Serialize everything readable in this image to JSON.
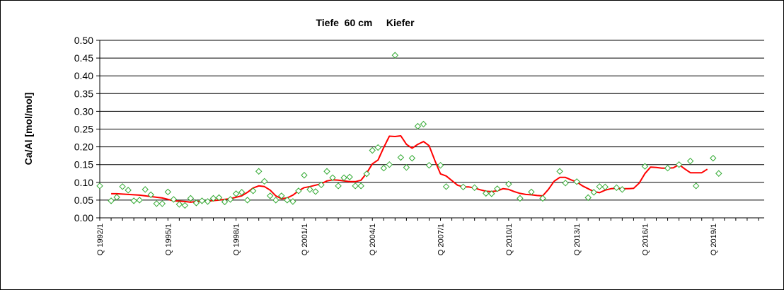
{
  "chart_data": {
    "type": "line",
    "title": "Tiefe  60 cm     Kiefer",
    "xlabel": "",
    "ylabel": "Ca/Al [mol/mol]",
    "ylim": [
      0,
      0.5
    ],
    "yticks": [
      "0.00",
      "0.05",
      "0.10",
      "0.15",
      "0.20",
      "0.25",
      "0.30",
      "0.35",
      "0.40",
      "0.45",
      "0.50"
    ],
    "xlim": [
      "Q 1992/1",
      "Q 2021/2"
    ],
    "xtick_labels": [
      "Q 1992/1",
      "Q 1995/1",
      "Q 1998/1",
      "Q 2001/1",
      "Q 2004/1",
      "Q 2007/1",
      "Q 2010/1",
      "Q 2013/1",
      "Q 2016/1",
      "Q 2019/1"
    ],
    "grid": "horizontal",
    "legend": "none",
    "colors": {
      "scatter": "#33aa33",
      "line": "#ff0000",
      "grid": "#000000",
      "plot_bg": "#ffffff"
    },
    "series": [
      {
        "type": "scatter",
        "marker": "diamond",
        "points": [
          [
            "Q 1992/1",
            0.09
          ],
          [
            "Q 1992/3",
            0.048
          ],
          [
            "Q 1992/4",
            0.058
          ],
          [
            "Q 1993/1",
            0.088
          ],
          [
            "Q 1993/2",
            0.078
          ],
          [
            "Q 1993/3",
            0.048
          ],
          [
            "Q 1993/4",
            0.05
          ],
          [
            "Q 1994/1",
            0.08
          ],
          [
            "Q 1994/2",
            0.065
          ],
          [
            "Q 1994/3",
            0.04
          ],
          [
            "Q 1994/4",
            0.04
          ],
          [
            "Q 1995/1",
            0.073
          ],
          [
            "Q 1995/2",
            0.052
          ],
          [
            "Q 1995/3",
            0.038
          ],
          [
            "Q 1995/4",
            0.035
          ],
          [
            "Q 1996/1",
            0.055
          ],
          [
            "Q 1996/2",
            0.042
          ],
          [
            "Q 1996/3",
            0.048
          ],
          [
            "Q 1996/4",
            0.046
          ],
          [
            "Q 1997/1",
            0.055
          ],
          [
            "Q 1997/2",
            0.057
          ],
          [
            "Q 1997/3",
            0.045
          ],
          [
            "Q 1997/4",
            0.052
          ],
          [
            "Q 1998/1",
            0.068
          ],
          [
            "Q 1998/2",
            0.072
          ],
          [
            "Q 1998/3",
            0.05
          ],
          [
            "Q 1998/4",
            0.076
          ],
          [
            "Q 1999/1",
            0.131
          ],
          [
            "Q 1999/2",
            0.103
          ],
          [
            "Q 1999/3",
            0.062
          ],
          [
            "Q 1999/4",
            0.05
          ],
          [
            "Q 2000/1",
            0.062
          ],
          [
            "Q 2000/2",
            0.05
          ],
          [
            "Q 2000/3",
            0.046
          ],
          [
            "Q 2000/4",
            0.076
          ],
          [
            "Q 2001/1",
            0.12
          ],
          [
            "Q 2001/2",
            0.08
          ],
          [
            "Q 2001/3",
            0.074
          ],
          [
            "Q 2001/4",
            0.093
          ],
          [
            "Q 2002/1",
            0.131
          ],
          [
            "Q 2002/2",
            0.113
          ],
          [
            "Q 2002/3",
            0.09
          ],
          [
            "Q 2002/4",
            0.113
          ],
          [
            "Q 2003/1",
            0.115
          ],
          [
            "Q 2003/2",
            0.09
          ],
          [
            "Q 2003/3",
            0.09
          ],
          [
            "Q 2003/4",
            0.124
          ],
          [
            "Q 2004/1",
            0.19
          ],
          [
            "Q 2004/2",
            0.198
          ],
          [
            "Q 2004/3",
            0.14
          ],
          [
            "Q 2004/4",
            0.15
          ],
          [
            "Q 2005/1",
            0.458
          ],
          [
            "Q 2005/2",
            0.17
          ],
          [
            "Q 2005/3",
            0.142
          ],
          [
            "Q 2005/4",
            0.168
          ],
          [
            "Q 2006/1",
            0.258
          ],
          [
            "Q 2006/2",
            0.264
          ],
          [
            "Q 2006/3",
            0.148
          ],
          [
            "Q 2007/1",
            0.148
          ],
          [
            "Q 2007/2",
            0.088
          ],
          [
            "Q 2008/1",
            0.087
          ],
          [
            "Q 2008/3",
            0.085
          ],
          [
            "Q 2009/1",
            0.069
          ],
          [
            "Q 2009/2",
            0.068
          ],
          [
            "Q 2009/3",
            0.082
          ],
          [
            "Q 2010/1",
            0.095
          ],
          [
            "Q 2010/3",
            0.055
          ],
          [
            "Q 2011/1",
            0.073
          ],
          [
            "Q 2011/3",
            0.055
          ],
          [
            "Q 2012/2",
            0.131
          ],
          [
            "Q 2012/3",
            0.098
          ],
          [
            "Q 2013/1",
            0.102
          ],
          [
            "Q 2013/3",
            0.057
          ],
          [
            "Q 2013/4",
            0.072
          ],
          [
            "Q 2014/1",
            0.088
          ],
          [
            "Q 2014/2",
            0.087
          ],
          [
            "Q 2014/4",
            0.085
          ],
          [
            "Q 2015/1",
            0.08
          ],
          [
            "Q 2016/1",
            0.145
          ],
          [
            "Q 2017/1",
            0.14
          ],
          [
            "Q 2017/3",
            0.15
          ],
          [
            "Q 2018/1",
            0.16
          ],
          [
            "Q 2018/2",
            0.09
          ],
          [
            "Q 2019/1",
            0.168
          ],
          [
            "Q 2019/2",
            0.125
          ]
        ]
      },
      {
        "type": "line",
        "points": [
          [
            "Q 1992/3",
            0.068
          ],
          [
            "Q 1992/4",
            0.068
          ],
          [
            "Q 1993/2",
            0.066
          ],
          [
            "Q 1993/4",
            0.064
          ],
          [
            "Q 1994/2",
            0.06
          ],
          [
            "Q 1994/4",
            0.056
          ],
          [
            "Q 1995/2",
            0.048
          ],
          [
            "Q 1995/4",
            0.046
          ],
          [
            "Q 1996/1",
            0.044
          ],
          [
            "Q 1996/2",
            0.046
          ],
          [
            "Q 1996/4",
            0.047
          ],
          [
            "Q 1997/2",
            0.05
          ],
          [
            "Q 1997/4",
            0.054
          ],
          [
            "Q 1998/1",
            0.058
          ],
          [
            "Q 1998/2",
            0.062
          ],
          [
            "Q 1998/3",
            0.072
          ],
          [
            "Q 1998/4",
            0.084
          ],
          [
            "Q 1999/1",
            0.09
          ],
          [
            "Q 1999/2",
            0.088
          ],
          [
            "Q 1999/3",
            0.078
          ],
          [
            "Q 1999/4",
            0.062
          ],
          [
            "Q 2000/1",
            0.054
          ],
          [
            "Q 2000/2",
            0.056
          ],
          [
            "Q 2000/3",
            0.064
          ],
          [
            "Q 2000/4",
            0.076
          ],
          [
            "Q 2001/1",
            0.085
          ],
          [
            "Q 2001/2",
            0.088
          ],
          [
            "Q 2001/3",
            0.092
          ],
          [
            "Q 2001/4",
            0.096
          ],
          [
            "Q 2002/1",
            0.104
          ],
          [
            "Q 2002/2",
            0.107
          ],
          [
            "Q 2002/3",
            0.106
          ],
          [
            "Q 2002/4",
            0.104
          ],
          [
            "Q 2003/1",
            0.102
          ],
          [
            "Q 2003/2",
            0.102
          ],
          [
            "Q 2003/3",
            0.106
          ],
          [
            "Q 2003/4",
            0.126
          ],
          [
            "Q 2004/1",
            0.152
          ],
          [
            "Q 2004/2",
            0.163
          ],
          [
            "Q 2004/3",
            0.198
          ],
          [
            "Q 2004/4",
            0.23
          ],
          [
            "Q 2005/1",
            0.229
          ],
          [
            "Q 2005/2",
            0.231
          ],
          [
            "Q 2005/3",
            0.207
          ],
          [
            "Q 2005/4",
            0.196
          ],
          [
            "Q 2006/1",
            0.207
          ],
          [
            "Q 2006/2",
            0.215
          ],
          [
            "Q 2006/3",
            0.203
          ],
          [
            "Q 2006/4",
            0.162
          ],
          [
            "Q 2007/1",
            0.124
          ],
          [
            "Q 2007/2",
            0.118
          ],
          [
            "Q 2007/3",
            0.105
          ],
          [
            "Q 2007/4",
            0.092
          ],
          [
            "Q 2008/1",
            0.087
          ],
          [
            "Q 2008/2",
            0.087
          ],
          [
            "Q 2008/3",
            0.084
          ],
          [
            "Q 2008/4",
            0.079
          ],
          [
            "Q 2009/1",
            0.075
          ],
          [
            "Q 2009/2",
            0.074
          ],
          [
            "Q 2009/3",
            0.076
          ],
          [
            "Q 2009/4",
            0.082
          ],
          [
            "Q 2010/1",
            0.08
          ],
          [
            "Q 2010/2",
            0.074
          ],
          [
            "Q 2010/3",
            0.069
          ],
          [
            "Q 2010/4",
            0.066
          ],
          [
            "Q 2011/1",
            0.065
          ],
          [
            "Q 2011/2",
            0.063
          ],
          [
            "Q 2011/3",
            0.062
          ],
          [
            "Q 2011/4",
            0.08
          ],
          [
            "Q 2012/1",
            0.103
          ],
          [
            "Q 2012/2",
            0.114
          ],
          [
            "Q 2012/3",
            0.114
          ],
          [
            "Q 2012/4",
            0.107
          ],
          [
            "Q 2013/1",
            0.101
          ],
          [
            "Q 2013/2",
            0.09
          ],
          [
            "Q 2013/3",
            0.082
          ],
          [
            "Q 2013/4",
            0.074
          ],
          [
            "Q 2014/1",
            0.071
          ],
          [
            "Q 2014/2",
            0.078
          ],
          [
            "Q 2014/3",
            0.082
          ],
          [
            "Q 2014/4",
            0.083
          ],
          [
            "Q 2015/1",
            0.082
          ],
          [
            "Q 2015/2",
            0.082
          ],
          [
            "Q 2015/3",
            0.083
          ],
          [
            "Q 2015/4",
            0.098
          ],
          [
            "Q 2016/1",
            0.125
          ],
          [
            "Q 2016/2",
            0.143
          ],
          [
            "Q 2016/3",
            0.142
          ],
          [
            "Q 2016/4",
            0.14
          ],
          [
            "Q 2017/1",
            0.14
          ],
          [
            "Q 2017/2",
            0.141
          ],
          [
            "Q 2017/3",
            0.15
          ],
          [
            "Q 2017/4",
            0.138
          ],
          [
            "Q 2018/1",
            0.127
          ],
          [
            "Q 2018/2",
            0.127
          ],
          [
            "Q 2018/3",
            0.127
          ],
          [
            "Q 2018/4",
            0.137
          ]
        ]
      }
    ]
  }
}
